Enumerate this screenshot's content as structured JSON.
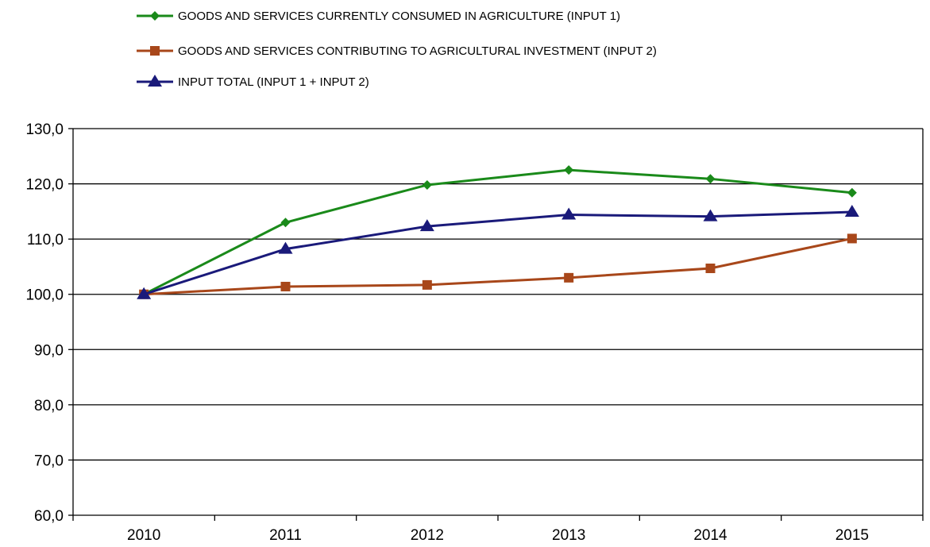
{
  "chart_data": {
    "type": "line",
    "title": "",
    "xlabel": "",
    "ylabel": "",
    "categories": [
      "2010",
      "2011",
      "2012",
      "2013",
      "2014",
      "2015"
    ],
    "ylim": [
      60,
      130
    ],
    "y_ticks": [
      60,
      70,
      80,
      90,
      100,
      110,
      120,
      130
    ],
    "y_tick_labels": [
      "60,0",
      "70,0",
      "80,0",
      "90,0",
      "100,0",
      "110,0",
      "120,0",
      "130,0"
    ],
    "grid": true,
    "legend_position": "top",
    "series": [
      {
        "name": "GOODS AND SERVICES CURRENTLY CONSUMED IN AGRICULTURE (INPUT 1)",
        "values": [
          100.0,
          113.0,
          119.8,
          122.5,
          120.9,
          118.4
        ],
        "color": "#1a8a1a",
        "marker": "diamond"
      },
      {
        "name": "GOODS AND SERVICES CONTRIBUTING TO AGRICULTURAL INVESTMENT (INPUT 2)",
        "values": [
          100.0,
          101.4,
          101.7,
          103.0,
          104.7,
          110.1
        ],
        "color": "#a8471a",
        "marker": "square"
      },
      {
        "name": "INPUT TOTAL (INPUT 1 + INPUT 2)",
        "values": [
          100.0,
          108.2,
          112.3,
          114.4,
          114.1,
          114.9
        ],
        "color": "#1a1a7a",
        "marker": "triangle"
      }
    ]
  }
}
